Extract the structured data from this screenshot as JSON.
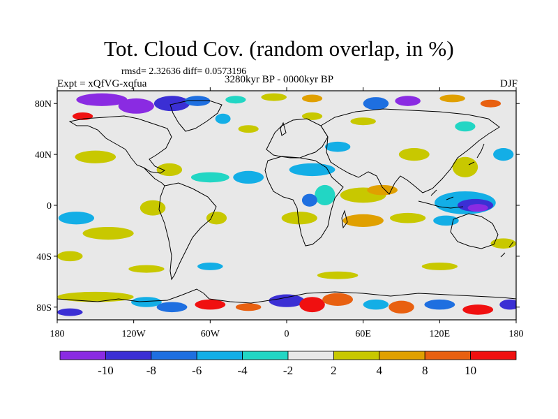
{
  "title": "Tot. Cloud Cov. (random overlap, in %)",
  "stats_text": "rmsd= 2.32636 diff= 0.0573196",
  "experiment_text": "Expt = xQfVG-xqfua",
  "period_text": "3280kyr BP - 0000kyr BP",
  "season": "DJF",
  "map": {
    "projection": "cylindrical equidistant",
    "lon_range": [
      -180,
      180
    ],
    "lat_range": [
      -90,
      90
    ],
    "lat_labels": [
      {
        "label": "80N",
        "lat": 80
      },
      {
        "label": "40N",
        "lat": 40
      },
      {
        "label": "0",
        "lat": 0
      },
      {
        "label": "40S",
        "lat": -40
      },
      {
        "label": "80S",
        "lat": -80
      }
    ],
    "lon_labels": [
      {
        "label": "180",
        "lon": -180
      },
      {
        "label": "120W",
        "lon": -120
      },
      {
        "label": "60W",
        "lon": -60
      },
      {
        "label": "0",
        "lon": 0
      },
      {
        "label": "60E",
        "lon": 60
      },
      {
        "label": "120E",
        "lon": 120
      },
      {
        "label": "180",
        "lon": 180
      }
    ],
    "background_color": "#e8e8e8",
    "coastline_color": "#000000"
  },
  "colorbar": {
    "levels": [
      "-10",
      "-8",
      "-6",
      "-4",
      "-2",
      "2",
      "4",
      "8",
      "10"
    ],
    "colors": [
      "#8a2be2",
      "#3b2fd4",
      "#1e6fe0",
      "#13aee6",
      "#22d6c4",
      "#e8e8e8",
      "#c8c800",
      "#e0a000",
      "#e86010",
      "#f01010"
    ]
  },
  "anomalies": [
    {
      "lon": -145,
      "lat": 83,
      "rx": 20,
      "ry": 5,
      "level": 0
    },
    {
      "lon": -118,
      "lat": 78,
      "rx": 14,
      "ry": 6,
      "level": 0
    },
    {
      "lon": -90,
      "lat": 80,
      "rx": 14,
      "ry": 6,
      "level": 1
    },
    {
      "lon": -70,
      "lat": 82,
      "rx": 10,
      "ry": 4,
      "level": 2
    },
    {
      "lon": -40,
      "lat": 83,
      "rx": 8,
      "ry": 3,
      "level": 4
    },
    {
      "lon": -10,
      "lat": 85,
      "rx": 10,
      "ry": 3,
      "level": 6
    },
    {
      "lon": 20,
      "lat": 84,
      "rx": 8,
      "ry": 3,
      "level": 7
    },
    {
      "lon": 70,
      "lat": 80,
      "rx": 10,
      "ry": 5,
      "level": 2
    },
    {
      "lon": 95,
      "lat": 82,
      "rx": 10,
      "ry": 4,
      "level": 0
    },
    {
      "lon": 130,
      "lat": 84,
      "rx": 10,
      "ry": 3,
      "level": 7
    },
    {
      "lon": 160,
      "lat": 80,
      "rx": 8,
      "ry": 3,
      "level": 8
    },
    {
      "lon": -160,
      "lat": 70,
      "rx": 8,
      "ry": 3,
      "level": 9
    },
    {
      "lon": -50,
      "lat": 68,
      "rx": 6,
      "ry": 4,
      "level": 3
    },
    {
      "lon": 20,
      "lat": 70,
      "rx": 8,
      "ry": 3,
      "level": 6
    },
    {
      "lon": 60,
      "lat": 66,
      "rx": 10,
      "ry": 3,
      "level": 6
    },
    {
      "lon": 140,
      "lat": 62,
      "rx": 8,
      "ry": 4,
      "level": 4
    },
    {
      "lon": -30,
      "lat": 60,
      "rx": 8,
      "ry": 3,
      "level": 6
    },
    {
      "lon": -150,
      "lat": 38,
      "rx": 16,
      "ry": 5,
      "level": 6
    },
    {
      "lon": -92,
      "lat": 28,
      "rx": 10,
      "ry": 5,
      "level": 6
    },
    {
      "lon": -60,
      "lat": 22,
      "rx": 15,
      "ry": 4,
      "level": 4
    },
    {
      "lon": -30,
      "lat": 22,
      "rx": 12,
      "ry": 5,
      "level": 3
    },
    {
      "lon": 20,
      "lat": 28,
      "rx": 18,
      "ry": 5,
      "level": 3
    },
    {
      "lon": 40,
      "lat": 46,
      "rx": 10,
      "ry": 4,
      "level": 3
    },
    {
      "lon": 100,
      "lat": 40,
      "rx": 12,
      "ry": 5,
      "level": 6
    },
    {
      "lon": 140,
      "lat": 30,
      "rx": 10,
      "ry": 8,
      "level": 6
    },
    {
      "lon": 170,
      "lat": 40,
      "rx": 8,
      "ry": 5,
      "level": 3
    },
    {
      "lon": 30,
      "lat": 8,
      "rx": 8,
      "ry": 8,
      "level": 4
    },
    {
      "lon": 18,
      "lat": 4,
      "rx": 6,
      "ry": 5,
      "level": 2
    },
    {
      "lon": 60,
      "lat": 8,
      "rx": 18,
      "ry": 6,
      "level": 6
    },
    {
      "lon": 75,
      "lat": 12,
      "rx": 12,
      "ry": 4,
      "level": 7
    },
    {
      "lon": 140,
      "lat": 2,
      "rx": 24,
      "ry": 9,
      "level": 3
    },
    {
      "lon": 148,
      "lat": 0,
      "rx": 14,
      "ry": 5,
      "level": 1
    },
    {
      "lon": 150,
      "lat": -2,
      "rx": 8,
      "ry": 3,
      "level": 0
    },
    {
      "lon": -165,
      "lat": -10,
      "rx": 14,
      "ry": 5,
      "level": 3
    },
    {
      "lon": -140,
      "lat": -22,
      "rx": 20,
      "ry": 5,
      "level": 6
    },
    {
      "lon": -105,
      "lat": -2,
      "rx": 10,
      "ry": 6,
      "level": 6
    },
    {
      "lon": -55,
      "lat": -10,
      "rx": 8,
      "ry": 5,
      "level": 6
    },
    {
      "lon": 10,
      "lat": -10,
      "rx": 14,
      "ry": 5,
      "level": 6
    },
    {
      "lon": 60,
      "lat": -12,
      "rx": 16,
      "ry": 5,
      "level": 7
    },
    {
      "lon": 95,
      "lat": -10,
      "rx": 14,
      "ry": 4,
      "level": 6
    },
    {
      "lon": 125,
      "lat": -12,
      "rx": 10,
      "ry": 4,
      "level": 3
    },
    {
      "lon": 170,
      "lat": -30,
      "rx": 10,
      "ry": 4,
      "level": 6
    },
    {
      "lon": -170,
      "lat": -40,
      "rx": 10,
      "ry": 4,
      "level": 6
    },
    {
      "lon": -110,
      "lat": -50,
      "rx": 14,
      "ry": 3,
      "level": 6
    },
    {
      "lon": -60,
      "lat": -48,
      "rx": 10,
      "ry": 3,
      "level": 3
    },
    {
      "lon": 40,
      "lat": -55,
      "rx": 16,
      "ry": 3,
      "level": 6
    },
    {
      "lon": 120,
      "lat": -48,
      "rx": 14,
      "ry": 3,
      "level": 6
    },
    {
      "lon": -150,
      "lat": -72,
      "rx": 30,
      "ry": 4,
      "level": 6
    },
    {
      "lon": -110,
      "lat": -76,
      "rx": 12,
      "ry": 4,
      "level": 3
    },
    {
      "lon": -90,
      "lat": -80,
      "rx": 12,
      "ry": 4,
      "level": 2
    },
    {
      "lon": -60,
      "lat": -78,
      "rx": 12,
      "ry": 4,
      "level": 9
    },
    {
      "lon": -30,
      "lat": -80,
      "rx": 10,
      "ry": 3,
      "level": 8
    },
    {
      "lon": 0,
      "lat": -75,
      "rx": 14,
      "ry": 5,
      "level": 1
    },
    {
      "lon": 20,
      "lat": -78,
      "rx": 10,
      "ry": 6,
      "level": 9
    },
    {
      "lon": 40,
      "lat": -74,
      "rx": 12,
      "ry": 5,
      "level": 8
    },
    {
      "lon": 70,
      "lat": -78,
      "rx": 10,
      "ry": 4,
      "level": 3
    },
    {
      "lon": 90,
      "lat": -80,
      "rx": 10,
      "ry": 5,
      "level": 8
    },
    {
      "lon": 120,
      "lat": -78,
      "rx": 12,
      "ry": 4,
      "level": 2
    },
    {
      "lon": 150,
      "lat": -82,
      "rx": 12,
      "ry": 4,
      "level": 9
    },
    {
      "lon": 175,
      "lat": -78,
      "rx": 8,
      "ry": 4,
      "level": 1
    },
    {
      "lon": -170,
      "lat": -84,
      "rx": 10,
      "ry": 3,
      "level": 1
    }
  ]
}
